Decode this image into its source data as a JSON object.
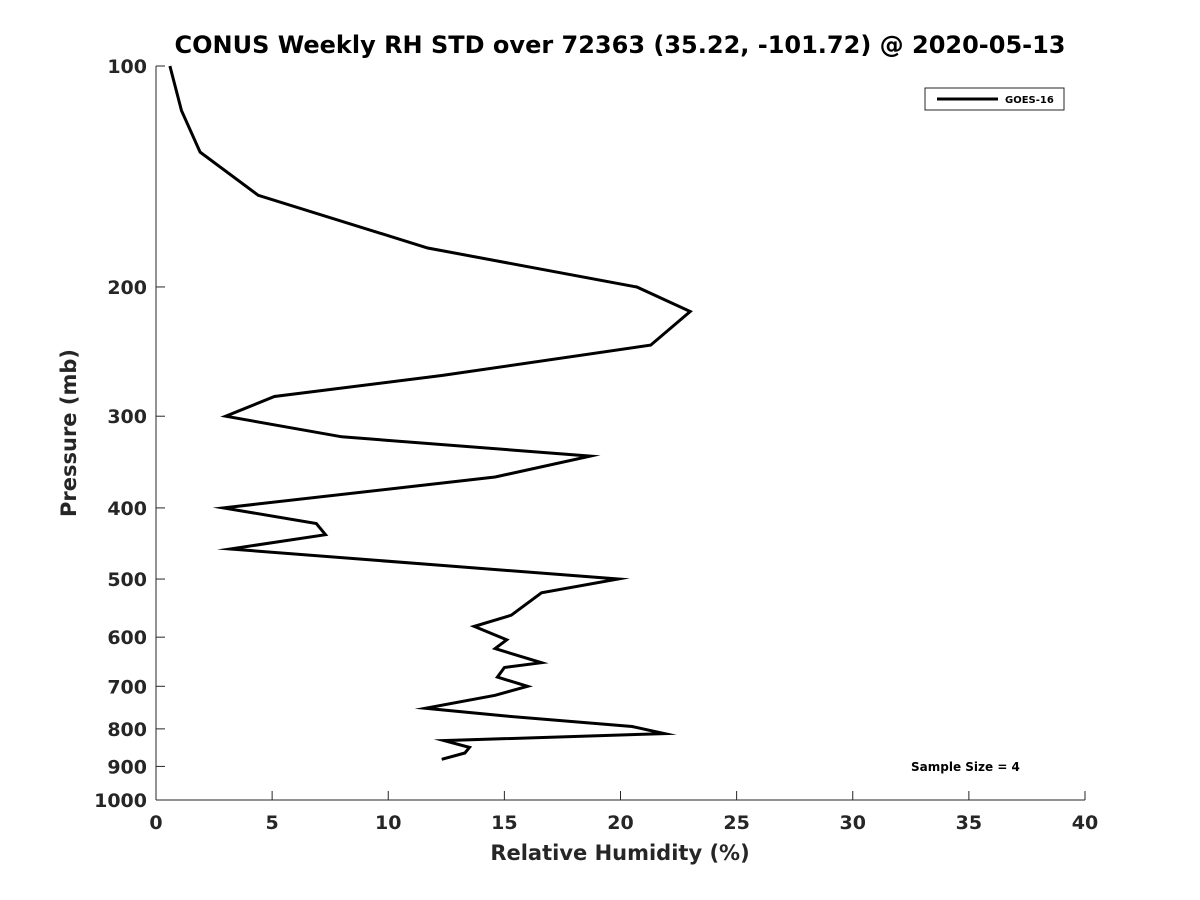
{
  "chart_data": {
    "type": "line",
    "title": "CONUS Weekly RH STD over 72363 (35.22, -101.72) @ 2020-05-13",
    "xlabel": "Relative Humidity (%)",
    "ylabel": "Pressure (mb)",
    "xlim": [
      0,
      40
    ],
    "ylim": [
      100,
      1000
    ],
    "y_scale": "log",
    "y_reversed": true,
    "x_ticks": [
      "0",
      "5",
      "10",
      "15",
      "20",
      "25",
      "30",
      "35",
      "40"
    ],
    "y_ticks": [
      "100",
      "200",
      "300",
      "400",
      "500",
      "600",
      "700",
      "800",
      "900",
      "1000"
    ],
    "grid": false,
    "legend_position": "top-right",
    "annotation": "Sample Size = 4",
    "series_color": "#000000",
    "series": [
      {
        "name": "GOES-16",
        "x": [
          0.6,
          1.1,
          1.9,
          4.4,
          11.7,
          20.7,
          23.0,
          21.3,
          12.3,
          5.1,
          3.0,
          8.0,
          18.7,
          14.6,
          2.9,
          6.9,
          7.3,
          3.2,
          12.3,
          19.9,
          16.6,
          15.3,
          13.7,
          15.1,
          14.6,
          16.6,
          15.0,
          14.7,
          16.0,
          14.6,
          11.6,
          15.0,
          20.5,
          21.9,
          12.4,
          13.5,
          13.3,
          12.3
        ],
        "y": [
          100,
          115,
          131,
          150,
          177,
          200,
          216,
          240,
          264,
          282,
          300,
          320,
          340,
          363,
          400,
          420,
          435,
          455,
          479,
          500,
          522,
          560,
          580,
          605,
          622,
          650,
          660,
          680,
          700,
          720,
          750,
          768,
          794,
          812,
          830,
          848,
          863,
          880
        ]
      }
    ]
  }
}
